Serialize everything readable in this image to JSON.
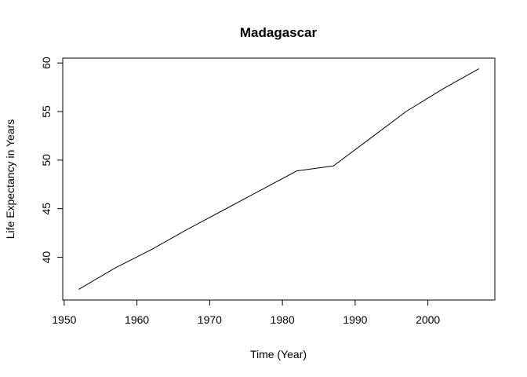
{
  "chart_data": {
    "type": "line",
    "title": "Madagascar",
    "xlabel": "Time (Year)",
    "ylabel": "Life Expectancy in Years",
    "x": [
      1952,
      1957,
      1962,
      1967,
      1972,
      1977,
      1982,
      1987,
      1992,
      1997,
      2002,
      2007
    ],
    "series": [
      {
        "values": [
          36.7,
          38.9,
          40.8,
          42.9,
          44.9,
          46.9,
          48.9,
          49.4,
          52.2,
          55.0,
          57.3,
          59.4
        ]
      }
    ],
    "xlim": [
      1949.8,
      2009.2
    ],
    "ylim": [
      35.6,
      60.5
    ],
    "xticks": [
      "1950",
      "1960",
      "1970",
      "1980",
      "1990",
      "2000"
    ],
    "yticks": [
      "40",
      "45",
      "50",
      "55",
      "60"
    ],
    "grid": false,
    "legend": "none"
  }
}
